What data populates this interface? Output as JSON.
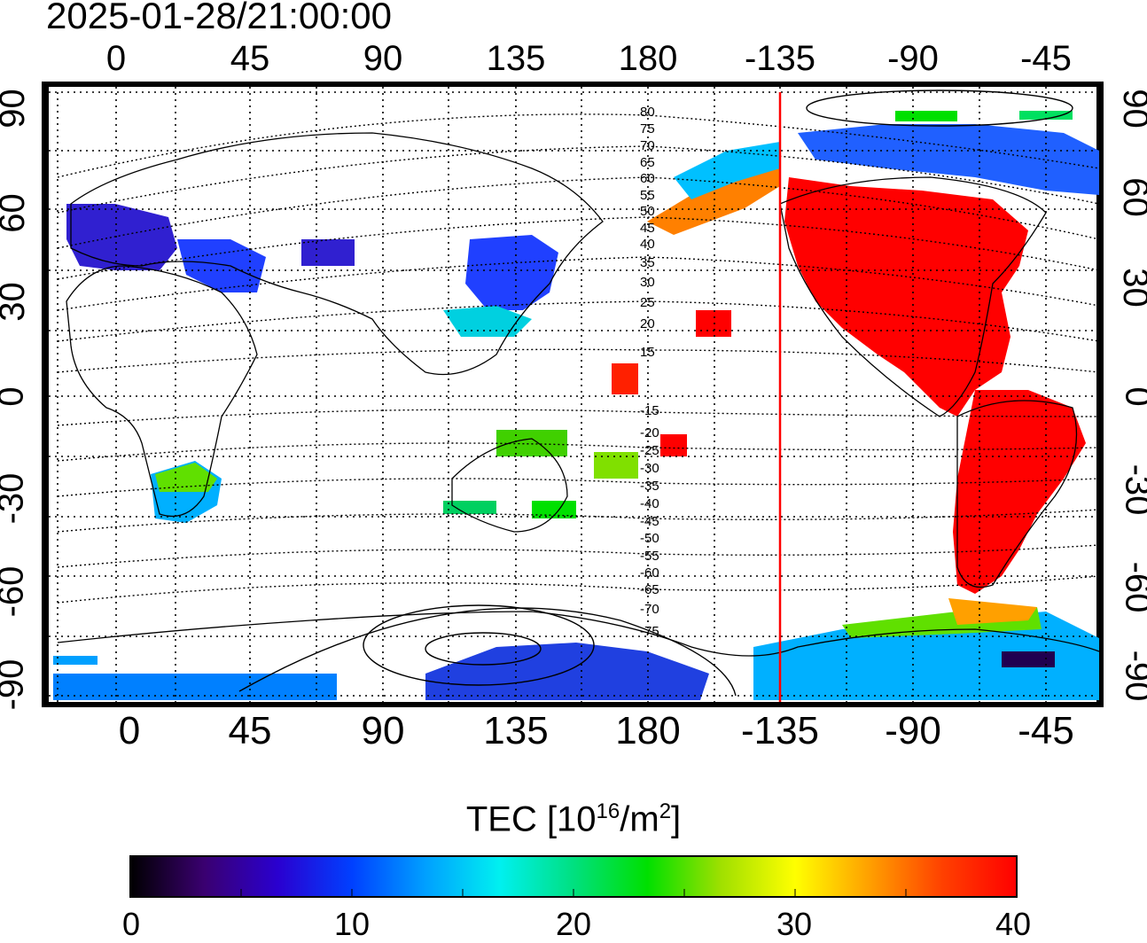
{
  "title": "2025-01-28/21:00:00",
  "lon_ticks_top": [
    "0",
    "45",
    "90",
    "135",
    "180",
    "-135",
    "-90",
    "-45"
  ],
  "lon_ticks_bottom": [
    "0",
    "45",
    "90",
    "135",
    "180",
    "-135",
    "-90",
    "-45"
  ],
  "lat_ticks_left": [
    "90",
    "60",
    "30",
    "0",
    "-30",
    "-60",
    "-90"
  ],
  "lat_ticks_right": [
    "90",
    "60",
    "30",
    "0",
    "-30",
    "-60",
    "-90"
  ],
  "map": {
    "lon_range": [
      -25,
      335
    ],
    "lat_range": [
      -93,
      93
    ],
    "terminator_lon": -135,
    "terminator_color": "#ff0000",
    "grid": true
  },
  "contour_labels": [
    "80",
    "75",
    "70",
    "65",
    "60",
    "55",
    "50",
    "45",
    "40",
    "35",
    "30",
    "25",
    "20",
    "15",
    "-15",
    "-20",
    "-25",
    "-30",
    "-35",
    "-40",
    "-45",
    "-50",
    "-55",
    "-60",
    "-65",
    "-70",
    "-75"
  ],
  "colorbar": {
    "label_main": "TEC  [10",
    "label_sup1": "16",
    "label_mid": "/m",
    "label_sup2": "2",
    "label_end": "]",
    "min": 0,
    "max": 40,
    "ticks": [
      "0",
      "10",
      "20",
      "30",
      "40"
    ],
    "colors": [
      "#000000",
      "#3a0070",
      "#2a00d0",
      "#0040ff",
      "#00a0ff",
      "#00f0f0",
      "#00e080",
      "#00e000",
      "#a0e000",
      "#ffff00",
      "#ffa000",
      "#ff4000",
      "#ff0000"
    ]
  }
}
